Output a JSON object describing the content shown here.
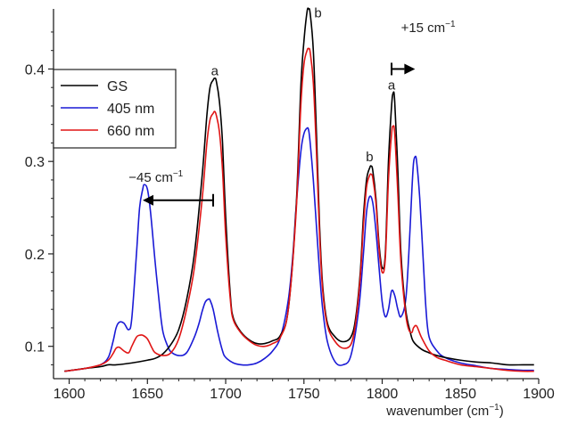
{
  "chart_data": {
    "type": "line",
    "title": "",
    "xlabel": "wavenumber (cm",
    "xlabel_sup": "−1",
    "xlabel_close": ")",
    "ylabel": "",
    "xlim": [
      1590,
      1900
    ],
    "ylim": [
      0.065,
      0.465
    ],
    "xticks": [
      {
        "value": 1600,
        "label": "1600"
      },
      {
        "value": 1650,
        "label": "1650"
      },
      {
        "value": 1700,
        "label": "1700"
      },
      {
        "value": 1750,
        "label": "1750"
      },
      {
        "value": 1800,
        "label": "1800"
      },
      {
        "value": 1850,
        "label": "1850"
      },
      {
        "value": 1900,
        "label": "1900"
      }
    ],
    "yticks": [
      {
        "value": 0.1,
        "label": "0.1"
      },
      {
        "value": 0.2,
        "label": "0.2"
      },
      {
        "value": 0.3,
        "label": "0.3"
      },
      {
        "value": 0.4,
        "label": "0.4"
      }
    ],
    "grid": false,
    "legend_position": "top-left",
    "series": [
      {
        "name": "GS",
        "color": "#000000",
        "x": [
          1597,
          1610,
          1620,
          1625,
          1630,
          1640,
          1650,
          1655,
          1660,
          1665,
          1670,
          1675,
          1680,
          1685,
          1688,
          1690,
          1692,
          1693,
          1694,
          1696,
          1698,
          1700,
          1703,
          1705,
          1710,
          1715,
          1720,
          1725,
          1730,
          1735,
          1740,
          1745,
          1748,
          1750,
          1752,
          1753,
          1754,
          1756,
          1758,
          1760,
          1762,
          1765,
          1770,
          1775,
          1780,
          1783,
          1786,
          1788,
          1790,
          1792,
          1793,
          1794,
          1796,
          1798,
          1800,
          1802,
          1804,
          1806,
          1807,
          1808,
          1810,
          1812,
          1815,
          1818,
          1820,
          1825,
          1830,
          1835,
          1840,
          1850,
          1860,
          1870,
          1880,
          1890,
          1897
        ],
        "y": [
          0.073,
          0.076,
          0.078,
          0.08,
          0.08,
          0.082,
          0.085,
          0.087,
          0.092,
          0.102,
          0.118,
          0.15,
          0.2,
          0.285,
          0.35,
          0.38,
          0.388,
          0.39,
          0.387,
          0.365,
          0.32,
          0.24,
          0.155,
          0.13,
          0.115,
          0.107,
          0.103,
          0.103,
          0.106,
          0.112,
          0.14,
          0.25,
          0.38,
          0.43,
          0.462,
          0.465,
          0.46,
          0.42,
          0.33,
          0.23,
          0.165,
          0.125,
          0.11,
          0.105,
          0.11,
          0.13,
          0.18,
          0.24,
          0.28,
          0.293,
          0.295,
          0.29,
          0.26,
          0.21,
          0.185,
          0.2,
          0.3,
          0.36,
          0.374,
          0.365,
          0.29,
          0.2,
          0.14,
          0.115,
          0.105,
          0.097,
          0.093,
          0.09,
          0.088,
          0.085,
          0.083,
          0.082,
          0.08,
          0.08,
          0.08
        ]
      },
      {
        "name": "405 nm",
        "color": "#1a1ad6",
        "x": [
          1597,
          1610,
          1620,
          1625,
          1628,
          1630,
          1632,
          1635,
          1638,
          1640,
          1643,
          1645,
          1647,
          1648,
          1650,
          1652,
          1655,
          1658,
          1660,
          1663,
          1665,
          1670,
          1675,
          1680,
          1683,
          1685,
          1687,
          1689,
          1690,
          1692,
          1695,
          1698,
          1700,
          1705,
          1710,
          1715,
          1720,
          1725,
          1730,
          1735,
          1740,
          1743,
          1745,
          1748,
          1750,
          1752,
          1753,
          1754,
          1756,
          1758,
          1760,
          1762,
          1765,
          1770,
          1775,
          1780,
          1785,
          1788,
          1790,
          1792,
          1794,
          1796,
          1798,
          1800,
          1802,
          1804,
          1806,
          1808,
          1810,
          1812,
          1815,
          1817,
          1819,
          1820,
          1821,
          1822,
          1824,
          1826,
          1828,
          1830,
          1835,
          1840,
          1850,
          1860,
          1870,
          1880,
          1890,
          1897
        ],
        "y": [
          0.073,
          0.076,
          0.08,
          0.088,
          0.105,
          0.12,
          0.126,
          0.125,
          0.118,
          0.13,
          0.2,
          0.25,
          0.27,
          0.275,
          0.27,
          0.245,
          0.19,
          0.14,
          0.115,
          0.1,
          0.094,
          0.09,
          0.093,
          0.11,
          0.125,
          0.138,
          0.148,
          0.151,
          0.15,
          0.14,
          0.115,
          0.095,
          0.088,
          0.082,
          0.08,
          0.08,
          0.082,
          0.087,
          0.095,
          0.11,
          0.15,
          0.2,
          0.25,
          0.31,
          0.33,
          0.336,
          0.334,
          0.32,
          0.28,
          0.23,
          0.18,
          0.14,
          0.105,
          0.083,
          0.08,
          0.09,
          0.14,
          0.2,
          0.245,
          0.262,
          0.255,
          0.225,
          0.185,
          0.148,
          0.132,
          0.14,
          0.16,
          0.155,
          0.14,
          0.132,
          0.15,
          0.2,
          0.27,
          0.298,
          0.305,
          0.3,
          0.26,
          0.2,
          0.14,
          0.11,
          0.095,
          0.088,
          0.082,
          0.079,
          0.076,
          0.075,
          0.074,
          0.074
        ]
      },
      {
        "name": "660 nm",
        "color": "#e01515",
        "x": [
          1597,
          1610,
          1620,
          1625,
          1628,
          1630,
          1632,
          1635,
          1638,
          1640,
          1643,
          1645,
          1647,
          1650,
          1653,
          1655,
          1660,
          1665,
          1670,
          1675,
          1680,
          1685,
          1688,
          1690,
          1692,
          1693,
          1694,
          1696,
          1698,
          1700,
          1703,
          1705,
          1710,
          1715,
          1720,
          1725,
          1730,
          1735,
          1740,
          1745,
          1748,
          1750,
          1752,
          1753,
          1754,
          1756,
          1758,
          1760,
          1762,
          1765,
          1770,
          1775,
          1780,
          1783,
          1786,
          1788,
          1790,
          1792,
          1793,
          1794,
          1796,
          1798,
          1800,
          1802,
          1804,
          1806,
          1807,
          1808,
          1810,
          1812,
          1815,
          1817,
          1819,
          1820,
          1822,
          1825,
          1830,
          1835,
          1840,
          1850,
          1860,
          1870,
          1880,
          1890,
          1897
        ],
        "y": [
          0.073,
          0.076,
          0.08,
          0.085,
          0.092,
          0.098,
          0.099,
          0.095,
          0.093,
          0.1,
          0.11,
          0.112,
          0.112,
          0.108,
          0.098,
          0.093,
          0.09,
          0.093,
          0.108,
          0.14,
          0.185,
          0.26,
          0.32,
          0.345,
          0.352,
          0.354,
          0.35,
          0.332,
          0.29,
          0.22,
          0.15,
          0.128,
          0.114,
          0.106,
          0.101,
          0.1,
          0.103,
          0.11,
          0.14,
          0.245,
          0.36,
          0.405,
          0.42,
          0.422,
          0.418,
          0.385,
          0.31,
          0.22,
          0.16,
          0.122,
          0.105,
          0.098,
          0.102,
          0.125,
          0.175,
          0.23,
          0.272,
          0.285,
          0.286,
          0.282,
          0.255,
          0.205,
          0.18,
          0.195,
          0.28,
          0.33,
          0.338,
          0.33,
          0.265,
          0.19,
          0.135,
          0.118,
          0.115,
          0.12,
          0.122,
          0.11,
          0.095,
          0.088,
          0.085,
          0.08,
          0.078,
          0.076,
          0.074,
          0.073,
          0.073
        ]
      }
    ],
    "annotations": [
      {
        "text": "a",
        "x": 1693,
        "y": 0.393
      },
      {
        "text": "b",
        "x": 1759,
        "y": 0.456
      },
      {
        "text": "b",
        "x": 1792,
        "y": 0.3
      },
      {
        "text": "a",
        "x": 1806,
        "y": 0.378
      },
      {
        "text": "−45 cm",
        "sup": "−1",
        "x": 1638,
        "y": 0.278
      },
      {
        "text": "+15 cm",
        "sup": "−1",
        "x": 1812,
        "y": 0.44
      }
    ],
    "arrows": [
      {
        "name": "shift-arrow-minus45",
        "from": 1692,
        "to": 1647,
        "y": 0.258
      },
      {
        "name": "shift-arrow-plus15",
        "from": 1806,
        "to": 1821,
        "y": 0.4
      }
    ]
  }
}
